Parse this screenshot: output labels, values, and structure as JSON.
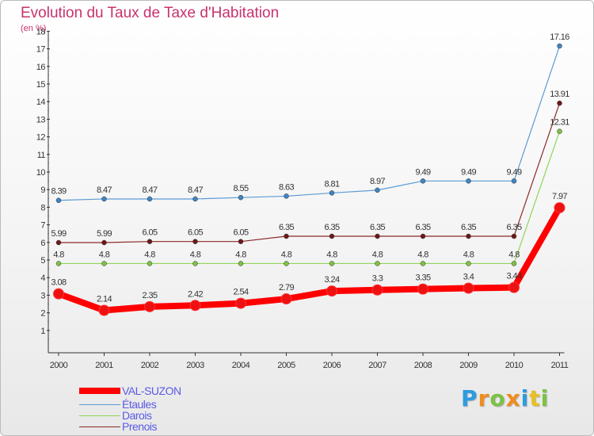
{
  "chart_data": {
    "type": "line",
    "title": "Evolution du Taux de Taxe d'Habitation",
    "subtitle": "(en %)",
    "xlabel": "",
    "ylabel": "",
    "categories": [
      "2000",
      "2001",
      "2002",
      "2003",
      "2004",
      "2005",
      "2006",
      "2007",
      "2008",
      "2009",
      "2010",
      "2011"
    ],
    "ylim": [
      0,
      18
    ],
    "yticks": [
      "1",
      "2",
      "3",
      "4",
      "5",
      "6",
      "7",
      "8",
      "9",
      "10",
      "11",
      "12",
      "13",
      "14",
      "15",
      "16",
      "17",
      "18"
    ],
    "grid": false,
    "legend_position": "bottom-left",
    "series": [
      {
        "name": "Étaules",
        "color": "#5b9bd5",
        "marker": "#3f84c2",
        "values": [
          8.39,
          8.47,
          8.47,
          8.47,
          8.55,
          8.63,
          8.81,
          8.97,
          9.49,
          9.49,
          9.49,
          17.16
        ],
        "labels": [
          "8.39",
          "8.47",
          "8.47",
          "8.47",
          "8.55",
          "8.63",
          "8.81",
          "8.97",
          "9.49",
          "9.49",
          "9.49",
          "17.16"
        ]
      },
      {
        "name": "Prenois",
        "color": "#8b2a2a",
        "marker": "#6b1a1a",
        "values": [
          5.99,
          5.99,
          6.05,
          6.05,
          6.05,
          6.35,
          6.35,
          6.35,
          6.35,
          6.35,
          6.35,
          13.91
        ],
        "labels": [
          "5.99",
          "5.99",
          "6.05",
          "6.05",
          "6.05",
          "6.35",
          "6.35",
          "6.35",
          "6.35",
          "6.35",
          "6.35",
          "13.91"
        ]
      },
      {
        "name": "Darois",
        "color": "#8fd45a",
        "marker": "#7cc244",
        "values": [
          4.8,
          4.8,
          4.8,
          4.8,
          4.8,
          4.8,
          4.8,
          4.8,
          4.8,
          4.8,
          4.8,
          12.31
        ],
        "labels": [
          "4.8",
          "4.8",
          "4.8",
          "4.8",
          "4.8",
          "4.8",
          "4.8",
          "4.8",
          "4.8",
          "4.8",
          "4.8",
          "12.31"
        ]
      },
      {
        "name": "VAL-SUZON",
        "color": "#ff0000",
        "marker": "#ee1111",
        "values": [
          3.08,
          2.14,
          2.35,
          2.42,
          2.54,
          2.79,
          3.24,
          3.3,
          3.35,
          3.4,
          3.44,
          7.97
        ],
        "labels": [
          "3.08",
          "2.14",
          "2.35",
          "2.42",
          "2.54",
          "2.79",
          "3.24",
          "3.3",
          "3.35",
          "3.4",
          "3.44",
          "7.97"
        ]
      }
    ],
    "legend": [
      "VAL-SUZON",
      "Étaules",
      "Darois",
      "Prenois"
    ]
  },
  "brand": {
    "letters": [
      "P",
      "r",
      "o",
      "x",
      "i",
      "t",
      "i"
    ],
    "colors": [
      "#2d9be0",
      "#f08c1e",
      "#7cc244",
      "#f08c1e",
      "#2d9be0",
      "#e8c020",
      "#7cc244"
    ]
  }
}
